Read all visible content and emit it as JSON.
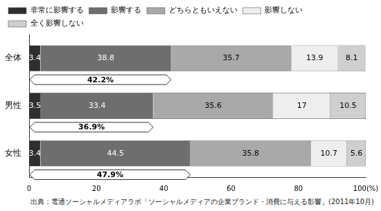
{
  "chart_data": {
    "type": "bar",
    "orientation": "horizontal",
    "stacked": true,
    "data_labels": true,
    "grid": false,
    "legend": "top",
    "categories": [
      "全体",
      "男性",
      "女性"
    ],
    "series": [
      {
        "name": "非常に影響する",
        "color": "#2e2e2e",
        "values": [
          3.4,
          3.5,
          3.4
        ]
      },
      {
        "name": "影響する",
        "color": "#6e6e6e",
        "values": [
          38.8,
          33.4,
          44.5
        ]
      },
      {
        "name": "どちらともいえない",
        "color": "#a9a9a9",
        "values": [
          35.7,
          35.6,
          35.8
        ]
      },
      {
        "name": "影響しない",
        "color": "#eeeeee",
        "values": [
          13.9,
          17.0,
          10.7
        ]
      },
      {
        "name": "全く影響しない",
        "color": "#cfcfcf",
        "values": [
          8.1,
          10.5,
          5.6
        ]
      }
    ],
    "xlim": [
      0,
      100
    ],
    "xticks": [
      0,
      20,
      40,
      60,
      80,
      {
        "value": 100,
        "label": "100(%)"
      }
    ],
    "annotations": [
      {
        "category": "全体",
        "value": 42.2,
        "label": "42.2%"
      },
      {
        "category": "男性",
        "value": 36.9,
        "label": "36.9%"
      },
      {
        "category": "女性",
        "value": 47.9,
        "label": "47.9%"
      }
    ],
    "source": "出典：電通ソーシャルメディアラボ「ソーシャルメディアの企業ブランド・消費に与える影響」(2011年10月)"
  }
}
